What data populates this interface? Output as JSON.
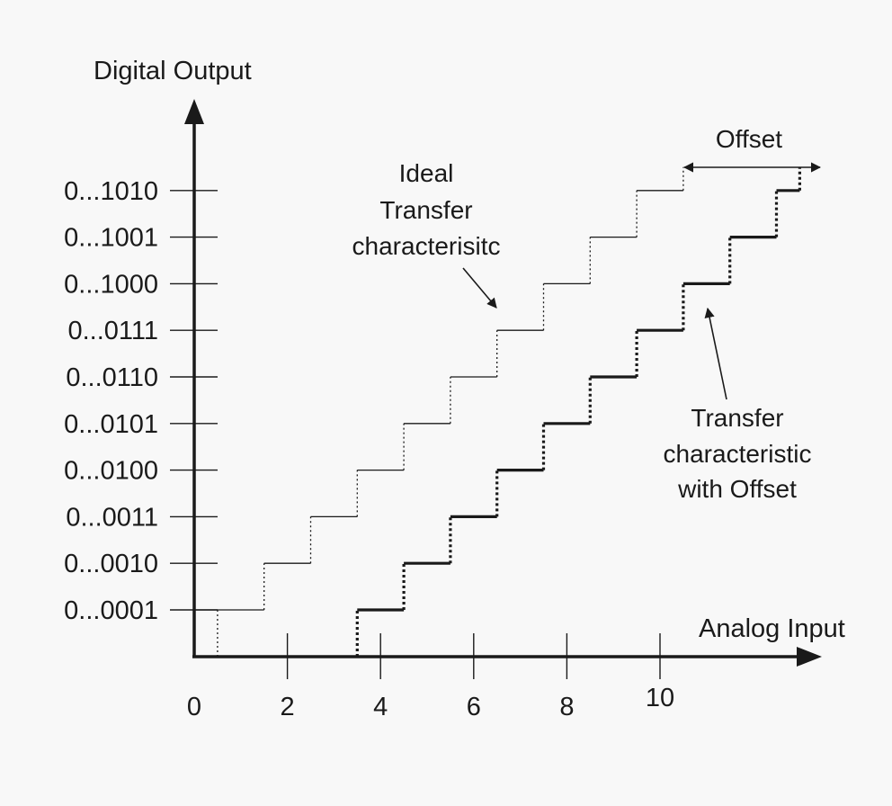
{
  "diagram": {
    "y_axis_label": "Digital Output",
    "x_axis_label": "Analog Input",
    "x_ticks": [
      0,
      2,
      4,
      6,
      8,
      10
    ],
    "y_codes": [
      "0...0001",
      "0...0010",
      "0...0011",
      "0...0100",
      "0...0101",
      "0...0110",
      "0...0111",
      "0...1000",
      "0...1001",
      "0...1010"
    ],
    "ideal_label": [
      "Ideal",
      "Transfer",
      "characterisitc"
    ],
    "offset_curve_label": [
      "Transfer",
      "characteristic",
      "with Offset"
    ],
    "offset_label": "Offset",
    "offset_lsb": 3,
    "colors": {
      "ink": "#1a1a1a",
      "background": "#f8f8f8"
    }
  }
}
